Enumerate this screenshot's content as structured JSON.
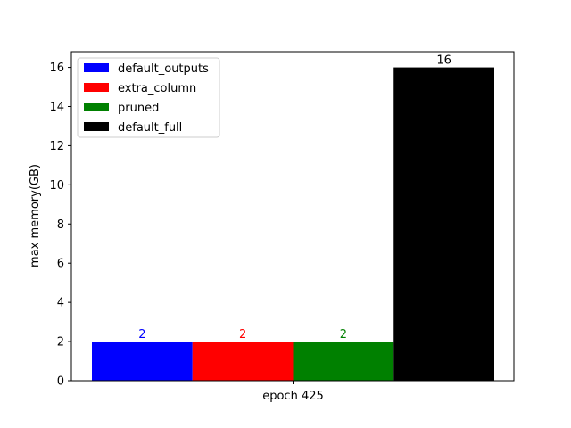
{
  "chart_data": {
    "type": "bar",
    "title": "",
    "xlabel": "",
    "ylabel": "max memory(GB)",
    "categories": [
      "epoch 425"
    ],
    "series": [
      {
        "name": "default_outputs",
        "values": [
          2
        ],
        "color": "#0000ff"
      },
      {
        "name": "extra_column",
        "values": [
          2
        ],
        "color": "#ff0000"
      },
      {
        "name": "pruned",
        "values": [
          2
        ],
        "color": "#008000"
      },
      {
        "name": "default_full",
        "values": [
          16
        ],
        "color": "#000000"
      }
    ],
    "data_labels": [
      "2",
      "2",
      "2",
      "16"
    ],
    "ylim": [
      0,
      16.8
    ],
    "yticks": [
      "0",
      "2",
      "4",
      "6",
      "8",
      "10",
      "12",
      "14",
      "16"
    ],
    "grid": false,
    "legend_position": "top-left"
  }
}
